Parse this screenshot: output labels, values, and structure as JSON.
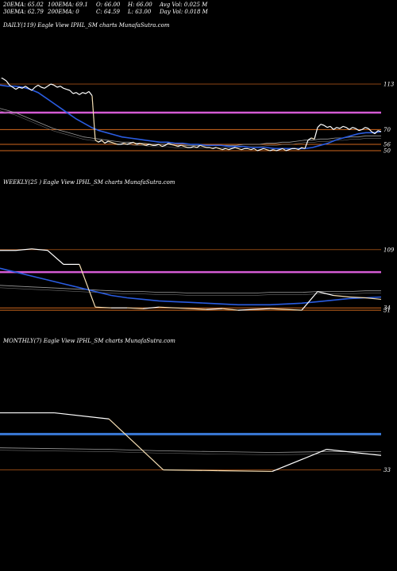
{
  "header": {
    "ema20": "20EMA: 65.02",
    "ema100": "100EMA: 69.1",
    "open": "O: 66.00",
    "high": "H: 66.00",
    "avg_vol": "Avg Vol: 0.025 M",
    "ema30": "30EMA: 62.79",
    "ema200": "200EMA: 0",
    "close": "C: 64.59",
    "low": "L: 63.00",
    "day_vol": "Day Vol: 0.018 M"
  },
  "colors": {
    "background": "#000000",
    "price": "#ffffff",
    "down_segment": "#f5deb3",
    "ema_blue": "#2a5ce0",
    "ema_grey": "#9a9a9a",
    "magenta": "#d45bd4",
    "brown": "#8b4513",
    "orange": "#d2691e",
    "blue_band": "#3a7ad8"
  },
  "chart_data": [
    {
      "type": "line",
      "label": "DAILY(119) Eagle   View  IPHL_SM charts MunafaSutra.com",
      "y_levels": [
        113,
        70,
        56,
        50
      ],
      "level_labels": [
        "113",
        "70",
        "56",
        "50"
      ],
      "magenta_level": 86,
      "ylim": [
        44,
        119
      ],
      "series": [
        {
          "role": "price",
          "values": [
            120,
            118,
            116,
            112,
            110,
            108,
            110,
            109,
            111,
            109,
            107,
            110,
            112,
            110,
            109,
            111,
            113,
            112,
            110,
            111,
            109,
            108,
            107,
            104,
            105,
            103,
            105,
            104,
            106,
            102,
            60,
            58,
            60,
            57,
            59,
            58,
            57,
            56,
            56,
            57,
            56,
            57,
            58,
            56,
            57,
            56,
            55,
            56,
            55,
            55,
            56,
            54,
            55,
            57,
            56,
            55,
            54,
            55,
            54,
            53,
            53,
            54,
            53,
            55,
            54,
            53,
            53,
            52,
            53,
            52,
            51,
            52,
            51,
            52,
            53,
            52,
            51,
            52,
            52,
            51,
            52,
            50,
            51,
            52,
            51,
            50,
            51,
            50,
            51,
            52,
            50,
            51,
            52,
            52,
            51,
            53,
            52,
            60,
            62,
            61,
            72,
            75,
            74,
            72,
            73,
            70,
            72,
            71,
            73,
            72,
            70,
            72,
            71,
            69,
            70,
            72,
            71,
            68,
            66,
            69,
            68
          ]
        },
        {
          "role": "ema_blue",
          "values": [
            112,
            111,
            111,
            110,
            108,
            105,
            100,
            95,
            90,
            85,
            80,
            76,
            72,
            69,
            67,
            65,
            63,
            62,
            61,
            60,
            59,
            58,
            58,
            57,
            57,
            56,
            56,
            55,
            55,
            55,
            54,
            54,
            54,
            53,
            53,
            53,
            52,
            52,
            52,
            52,
            52,
            53,
            55,
            57,
            60,
            62,
            64,
            66,
            67,
            67,
            68
          ]
        },
        {
          "role": "ema_grey",
          "values": [
            90,
            88,
            86,
            83,
            80,
            77,
            74,
            71,
            69,
            67,
            65,
            63,
            62,
            61,
            60,
            59,
            58,
            58,
            57,
            57,
            56,
            56,
            56,
            55,
            55,
            55,
            55,
            55,
            55,
            55,
            55,
            55,
            56,
            56,
            56,
            57,
            57,
            58,
            58,
            59,
            60,
            60,
            61,
            61,
            62,
            62,
            63,
            63,
            64,
            64,
            64
          ]
        }
      ]
    },
    {
      "type": "line",
      "label": "WEEKLY(25                    ) Eagle   View  IPHL_SM charts MunafaSutra.com",
      "y_levels": [
        109,
        34,
        31
      ],
      "level_labels": [
        "109",
        "34",
        "31"
      ],
      "magenta_level": 80,
      "ylim": [
        25,
        119
      ],
      "series": [
        {
          "role": "price",
          "values": [
            108,
            108,
            110,
            108,
            90,
            90,
            35,
            34,
            34,
            33,
            35,
            34,
            33,
            32,
            33,
            31,
            32,
            33,
            32,
            31,
            55,
            50,
            48,
            47,
            45
          ]
        },
        {
          "role": "ema_blue",
          "values": [
            85,
            80,
            75,
            70,
            65,
            60,
            55,
            50,
            47,
            45,
            43,
            42,
            41,
            40,
            39,
            38,
            38,
            38,
            39,
            40,
            42,
            44,
            46,
            47,
            48
          ]
        },
        {
          "role": "ema_grey",
          "values": [
            63,
            62,
            61,
            60,
            59,
            58,
            57,
            56,
            55,
            55,
            54,
            54,
            53,
            53,
            53,
            53,
            53,
            54,
            54,
            54,
            55,
            55,
            55,
            56,
            56
          ]
        }
      ]
    },
    {
      "type": "line",
      "label": "MONTHLY(7) Eagle   View  IPHL_SM charts MunafaSutra.com",
      "y_levels": [
        33
      ],
      "level_labels": [
        "33"
      ],
      "blue_level": 80,
      "ylim": [
        20,
        119
      ],
      "series": [
        {
          "role": "price",
          "values": [
            108,
            108,
            100,
            33,
            32,
            31,
            60,
            52
          ]
        },
        {
          "role": "ema_grey",
          "values": [
            62,
            61,
            60,
            58,
            57,
            56,
            57,
            57
          ]
        }
      ]
    }
  ]
}
